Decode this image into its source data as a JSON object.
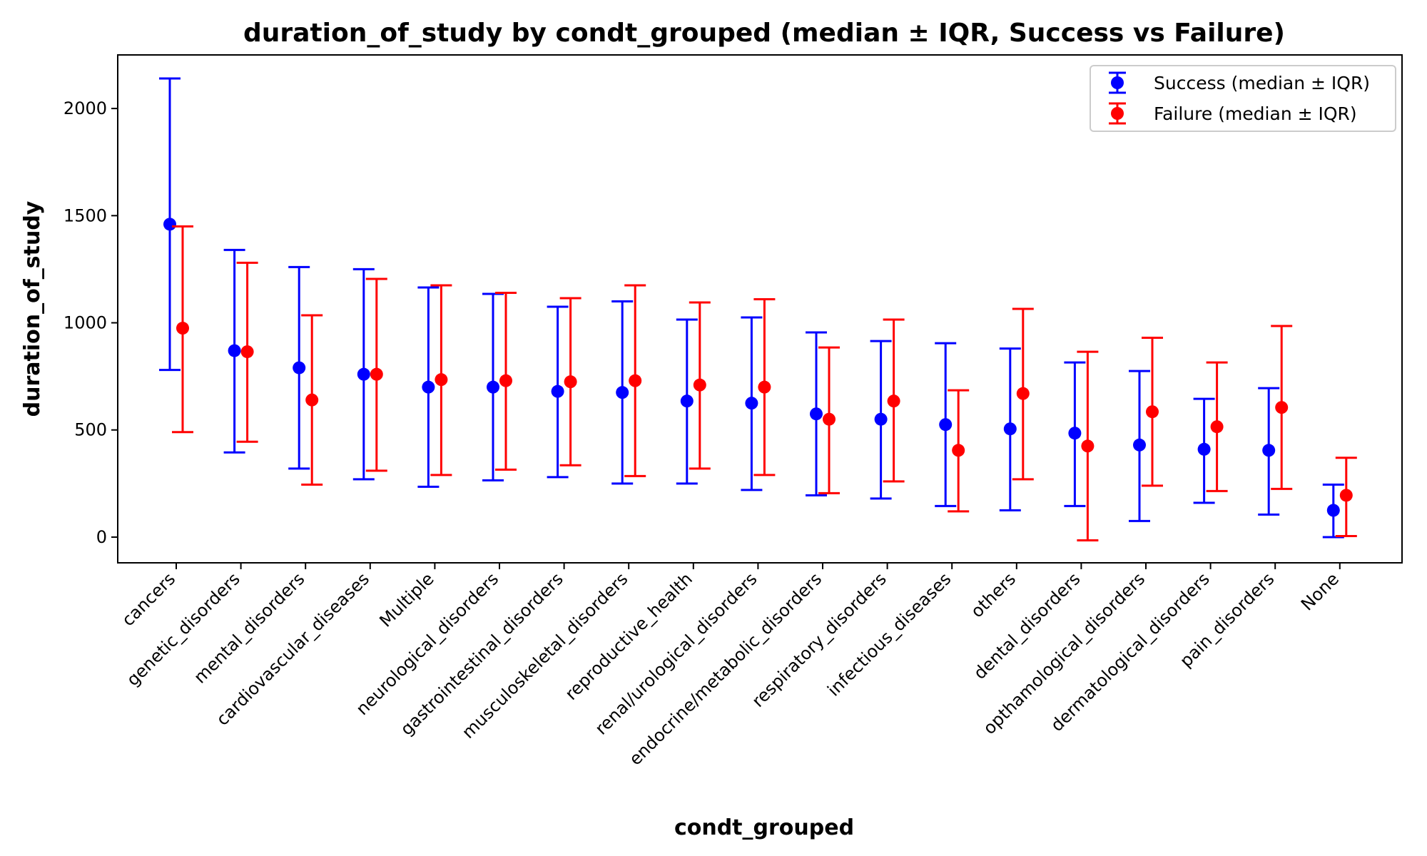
{
  "chart_data": {
    "type": "errorbar",
    "title": "duration_of_study by condt_grouped (median ± IQR, Success vs Failure)",
    "xlabel": "condt_grouped",
    "ylabel": "duration_of_study",
    "ylim": [
      -120,
      2250
    ],
    "yticks": [
      0,
      500,
      1000,
      1500,
      2000
    ],
    "grid": false,
    "legend_position": "top-right",
    "categories": [
      "cancers",
      "genetic_disorders",
      "mental_disorders",
      "cardiovascular_diseases",
      "Multiple",
      "neurological_disorders",
      "gastrointestinal_disorders",
      "musculoskeletal_disorders",
      "reproductive_health",
      "renal/urological_disorders",
      "endocrine/metabolic_disorders",
      "respiratory_disorders",
      "infectious_diseases",
      "others",
      "dental_disorders",
      "opthamological_disorders",
      "dermatological_disorders",
      "pain_disorders",
      "None"
    ],
    "series": [
      {
        "name": "Success (median ± IQR)",
        "color": "#0000ff",
        "median": [
          1460,
          870,
          790,
          760,
          700,
          700,
          680,
          675,
          635,
          625,
          575,
          550,
          525,
          505,
          485,
          430,
          410,
          405,
          125
        ],
        "lower": [
          780,
          395,
          320,
          270,
          235,
          265,
          280,
          250,
          250,
          220,
          195,
          180,
          145,
          125,
          145,
          75,
          160,
          105,
          0
        ],
        "upper": [
          2140,
          1340,
          1260,
          1250,
          1165,
          1135,
          1075,
          1100,
          1015,
          1025,
          955,
          915,
          905,
          880,
          815,
          775,
          645,
          695,
          245
        ]
      },
      {
        "name": "Failure (median ± IQR)",
        "color": "#ff0000",
        "median": [
          975,
          865,
          640,
          760,
          735,
          730,
          725,
          730,
          710,
          700,
          550,
          635,
          405,
          670,
          425,
          585,
          515,
          605,
          195
        ],
        "lower": [
          490,
          445,
          245,
          310,
          290,
          315,
          335,
          285,
          320,
          290,
          205,
          260,
          120,
          270,
          -15,
          240,
          215,
          225,
          5
        ],
        "upper": [
          1450,
          1280,
          1035,
          1205,
          1175,
          1140,
          1115,
          1175,
          1095,
          1110,
          885,
          1015,
          685,
          1065,
          865,
          930,
          815,
          985,
          370
        ]
      }
    ]
  }
}
